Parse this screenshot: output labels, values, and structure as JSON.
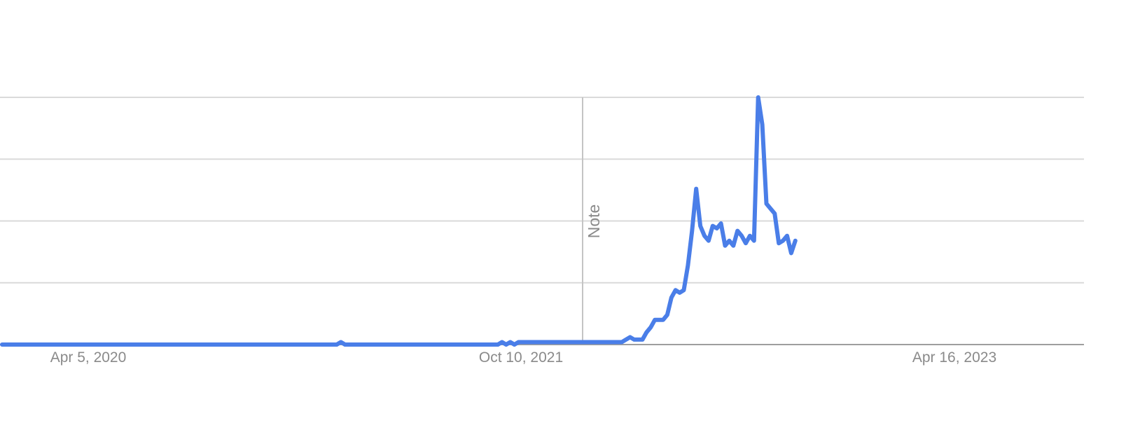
{
  "chart_data": {
    "type": "line",
    "title": "",
    "xlabel": "",
    "ylabel": "",
    "grid": true,
    "x_tick_labels": [
      "Apr 5, 2020",
      "Oct 10, 2021",
      "Apr 16, 2023"
    ],
    "ylim": [
      0,
      100
    ],
    "note": {
      "label": "Note",
      "at_index": 88
    },
    "series": [
      {
        "color": "#4a7ee8",
        "values": [
          0,
          0,
          0,
          0,
          0,
          0,
          0,
          0,
          0,
          0,
          0,
          0,
          0,
          0,
          0,
          0,
          0,
          0,
          0,
          0,
          0,
          0,
          0,
          0,
          0,
          0,
          0,
          0,
          0,
          0,
          0,
          0,
          0,
          0,
          0,
          0,
          0,
          0,
          0,
          0,
          0,
          0,
          0,
          0,
          0,
          0,
          0,
          0,
          0,
          0,
          0,
          0,
          0,
          0,
          0,
          0,
          0,
          0,
          0,
          0,
          0,
          0,
          0,
          0,
          0,
          0,
          0,
          0,
          0,
          0,
          0,
          0,
          0,
          0,
          0,
          0,
          0,
          0,
          0,
          0,
          0,
          0,
          1,
          0,
          0,
          0,
          0,
          0,
          0,
          0,
          0,
          0,
          0,
          0,
          0,
          0,
          0,
          0,
          0,
          0,
          0,
          0,
          0,
          0,
          0,
          0,
          0,
          0,
          0,
          0,
          0,
          0,
          0,
          0,
          0,
          0,
          0,
          0,
          0,
          0,
          0,
          1,
          0,
          1,
          0,
          1,
          1,
          1,
          1,
          1,
          1,
          1,
          1,
          1,
          1,
          1,
          1,
          1,
          1,
          1,
          1,
          1,
          1,
          1,
          1,
          1,
          1,
          1,
          1,
          1,
          1,
          2,
          3,
          2,
          2,
          2,
          5,
          7,
          10,
          10,
          10,
          12,
          19,
          22,
          21,
          22,
          32,
          46,
          63,
          48,
          44,
          42,
          48,
          47,
          49,
          40,
          42,
          40,
          46,
          44,
          41,
          44,
          42,
          100,
          89,
          57,
          55,
          53,
          41,
          42,
          44,
          37,
          42
        ]
      }
    ]
  }
}
